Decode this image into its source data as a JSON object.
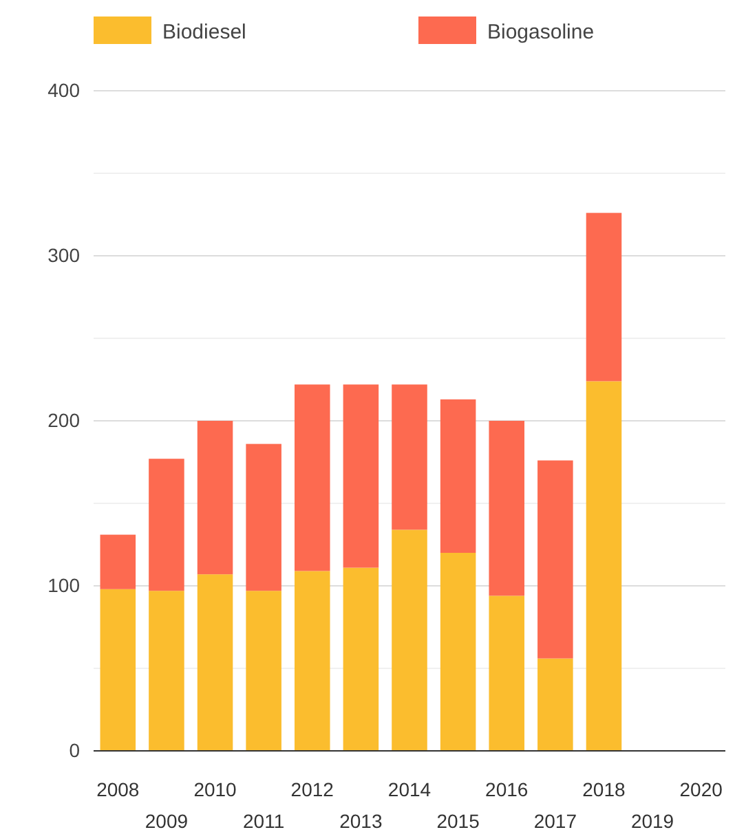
{
  "chart_data": {
    "type": "bar",
    "stacked": true,
    "categories": [
      "2008",
      "2009",
      "2010",
      "2011",
      "2012",
      "2013",
      "2014",
      "2015",
      "2016",
      "2017",
      "2018",
      "2019",
      "2020"
    ],
    "series": [
      {
        "name": "Biodiesel",
        "color": "#fbbd2e",
        "values": [
          98,
          97,
          107,
          97,
          109,
          111,
          134,
          120,
          94,
          56,
          224,
          null,
          null
        ]
      },
      {
        "name": "Biogasoline",
        "color": "#fd6a50",
        "values": [
          33,
          80,
          93,
          89,
          113,
          111,
          88,
          93,
          106,
          120,
          102,
          null,
          null
        ]
      }
    ],
    "ylim": [
      0,
      400
    ],
    "yticks": [
      0,
      {
        "value": 50,
        "label": null
      },
      100,
      {
        "value": 150,
        "label": null
      },
      200,
      {
        "value": 250,
        "label": null
      },
      300,
      {
        "value": 350,
        "label": null
      },
      400
    ],
    "grid": "y",
    "legend": "top left"
  }
}
